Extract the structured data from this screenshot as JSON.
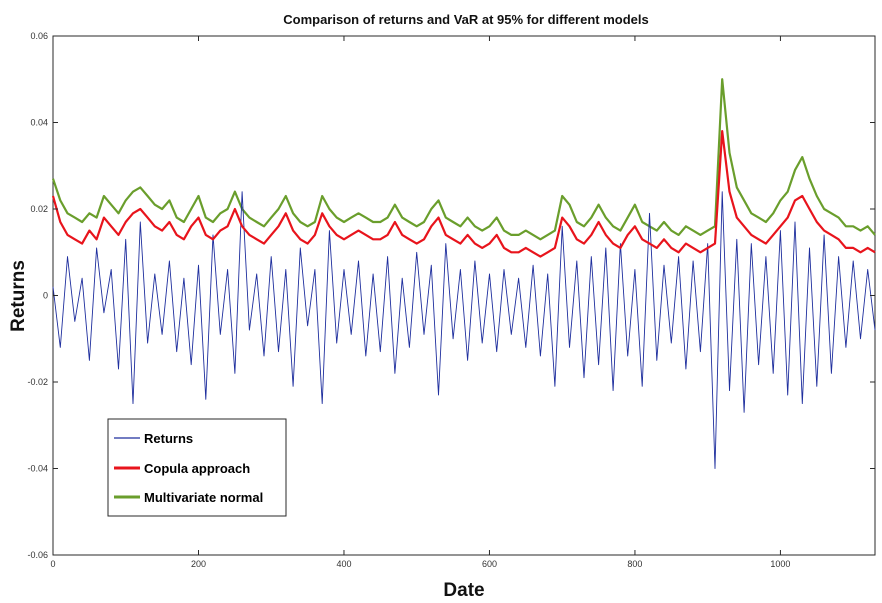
{
  "chart_data": {
    "type": "line",
    "title": "Comparison of returns and VaR at 95% for different models",
    "xlabel": "Date",
    "ylabel": "Returns",
    "xlim": [
      0,
      1130
    ],
    "ylim": [
      -0.06,
      0.06
    ],
    "xticks": [
      0,
      200,
      400,
      600,
      800,
      1000
    ],
    "xtick_labels": [
      "0",
      "200",
      "400",
      "600",
      "800",
      "1000"
    ],
    "yticks": [
      -0.06,
      -0.04,
      -0.02,
      0,
      0.02,
      0.04,
      0.06
    ],
    "ytick_labels": [
      "-0.06",
      "-0.04",
      "-0.02",
      "0",
      "0.02",
      "0.04",
      "0.06"
    ],
    "grid": false,
    "legend_position": "bottom-left",
    "x_step": 10,
    "series": [
      {
        "name": "Returns",
        "color": "#1f2f9e",
        "values": [
          0.002,
          -0.012,
          0.009,
          -0.006,
          0.004,
          -0.015,
          0.011,
          -0.004,
          0.006,
          -0.017,
          0.013,
          -0.025,
          0.017,
          -0.011,
          0.005,
          -0.009,
          0.008,
          -0.013,
          0.004,
          -0.016,
          0.007,
          -0.024,
          0.014,
          -0.009,
          0.006,
          -0.018,
          0.024,
          -0.008,
          0.005,
          -0.014,
          0.009,
          -0.013,
          0.006,
          -0.021,
          0.011,
          -0.007,
          0.006,
          -0.025,
          0.015,
          -0.011,
          0.006,
          -0.009,
          0.008,
          -0.014,
          0.005,
          -0.013,
          0.009,
          -0.018,
          0.004,
          -0.012,
          0.01,
          -0.009,
          0.007,
          -0.023,
          0.012,
          -0.01,
          0.006,
          -0.015,
          0.008,
          -0.011,
          0.005,
          -0.013,
          0.006,
          -0.009,
          0.004,
          -0.012,
          0.007,
          -0.014,
          0.005,
          -0.021,
          0.016,
          -0.012,
          0.008,
          -0.019,
          0.009,
          -0.016,
          0.011,
          -0.022,
          0.012,
          -0.014,
          0.006,
          -0.021,
          0.019,
          -0.015,
          0.007,
          -0.011,
          0.009,
          -0.017,
          0.008,
          -0.013,
          0.012,
          -0.04,
          0.024,
          -0.022,
          0.013,
          -0.027,
          0.012,
          -0.016,
          0.009,
          -0.018,
          0.015,
          -0.023,
          0.017,
          -0.025,
          0.011,
          -0.021,
          0.014,
          -0.018,
          0.009,
          -0.012,
          0.008,
          -0.01,
          0.006,
          -0.008
        ]
      },
      {
        "name": "Copula approach",
        "color": "#e8141c",
        "values": [
          0.023,
          0.017,
          0.014,
          0.013,
          0.012,
          0.015,
          0.013,
          0.018,
          0.016,
          0.014,
          0.017,
          0.019,
          0.02,
          0.018,
          0.016,
          0.015,
          0.017,
          0.014,
          0.013,
          0.016,
          0.018,
          0.014,
          0.013,
          0.015,
          0.016,
          0.02,
          0.016,
          0.014,
          0.013,
          0.012,
          0.014,
          0.016,
          0.019,
          0.015,
          0.013,
          0.012,
          0.014,
          0.019,
          0.016,
          0.014,
          0.013,
          0.014,
          0.015,
          0.014,
          0.013,
          0.013,
          0.014,
          0.017,
          0.014,
          0.013,
          0.012,
          0.013,
          0.016,
          0.018,
          0.014,
          0.013,
          0.012,
          0.014,
          0.012,
          0.011,
          0.012,
          0.014,
          0.011,
          0.01,
          0.01,
          0.011,
          0.01,
          0.009,
          0.01,
          0.011,
          0.018,
          0.016,
          0.013,
          0.012,
          0.014,
          0.017,
          0.014,
          0.012,
          0.011,
          0.014,
          0.016,
          0.013,
          0.012,
          0.011,
          0.013,
          0.011,
          0.01,
          0.012,
          0.011,
          0.01,
          0.011,
          0.012,
          0.038,
          0.024,
          0.018,
          0.016,
          0.014,
          0.013,
          0.012,
          0.014,
          0.016,
          0.018,
          0.022,
          0.023,
          0.02,
          0.017,
          0.015,
          0.014,
          0.013,
          0.011,
          0.011,
          0.01,
          0.011,
          0.01
        ]
      },
      {
        "name": "Multivariate normal",
        "color": "#6a9e2c",
        "values": [
          0.027,
          0.022,
          0.019,
          0.018,
          0.017,
          0.019,
          0.018,
          0.023,
          0.021,
          0.019,
          0.022,
          0.024,
          0.025,
          0.023,
          0.021,
          0.02,
          0.022,
          0.018,
          0.017,
          0.02,
          0.023,
          0.018,
          0.017,
          0.019,
          0.02,
          0.024,
          0.02,
          0.018,
          0.017,
          0.016,
          0.018,
          0.02,
          0.023,
          0.019,
          0.017,
          0.016,
          0.017,
          0.023,
          0.02,
          0.018,
          0.017,
          0.018,
          0.019,
          0.018,
          0.017,
          0.017,
          0.018,
          0.021,
          0.018,
          0.017,
          0.016,
          0.017,
          0.02,
          0.022,
          0.018,
          0.017,
          0.016,
          0.018,
          0.016,
          0.015,
          0.016,
          0.018,
          0.015,
          0.014,
          0.014,
          0.015,
          0.014,
          0.013,
          0.014,
          0.015,
          0.023,
          0.021,
          0.017,
          0.016,
          0.018,
          0.021,
          0.018,
          0.016,
          0.015,
          0.018,
          0.021,
          0.017,
          0.016,
          0.015,
          0.017,
          0.015,
          0.014,
          0.016,
          0.015,
          0.014,
          0.015,
          0.016,
          0.05,
          0.033,
          0.025,
          0.022,
          0.019,
          0.018,
          0.017,
          0.019,
          0.022,
          0.024,
          0.029,
          0.032,
          0.027,
          0.023,
          0.02,
          0.019,
          0.018,
          0.016,
          0.016,
          0.015,
          0.016,
          0.014
        ]
      }
    ]
  }
}
